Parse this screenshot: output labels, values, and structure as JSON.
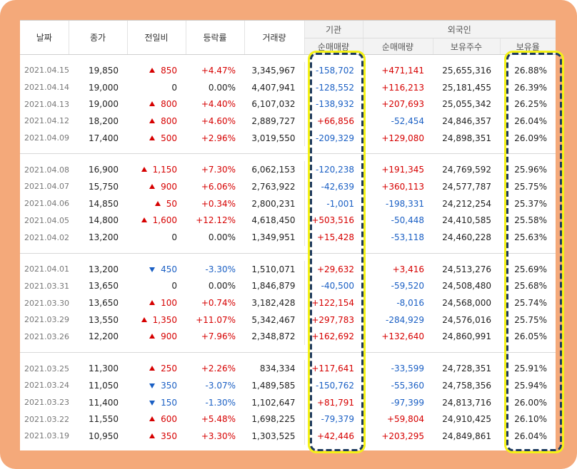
{
  "headers": {
    "date": "날짜",
    "close": "종가",
    "change": "전일비",
    "rate": "등락률",
    "volume": "거래량",
    "institution": "기관",
    "foreign": "외국인",
    "inst_net": "순매매량",
    "frgn_net": "순매매량",
    "frgn_shares": "보유주수",
    "frgn_ratio": "보유율"
  },
  "groups": [
    [
      {
        "date": "2021.04.15",
        "close": "19,850",
        "dir": "up",
        "change": "850",
        "rate": "+4.47%",
        "volume": "3,345,967",
        "inst": "-158,702",
        "frgn": "+471,141",
        "shares": "25,655,316",
        "ratio": "26.88%"
      },
      {
        "date": "2021.04.14",
        "close": "19,000",
        "dir": "none",
        "change": "0",
        "rate": "0.00%",
        "volume": "4,407,941",
        "inst": "-128,552",
        "frgn": "+116,213",
        "shares": "25,181,455",
        "ratio": "26.39%"
      },
      {
        "date": "2021.04.13",
        "close": "19,000",
        "dir": "up",
        "change": "800",
        "rate": "+4.40%",
        "volume": "6,107,032",
        "inst": "-138,932",
        "frgn": "+207,693",
        "shares": "25,055,342",
        "ratio": "26.25%"
      },
      {
        "date": "2021.04.12",
        "close": "18,200",
        "dir": "up",
        "change": "800",
        "rate": "+4.60%",
        "volume": "2,889,727",
        "inst": "+66,856",
        "frgn": "-52,454",
        "shares": "24,846,357",
        "ratio": "26.04%"
      },
      {
        "date": "2021.04.09",
        "close": "17,400",
        "dir": "up",
        "change": "500",
        "rate": "+2.96%",
        "volume": "3,019,550",
        "inst": "-209,329",
        "frgn": "+129,080",
        "shares": "24,898,351",
        "ratio": "26.09%"
      }
    ],
    [
      {
        "date": "2021.04.08",
        "close": "16,900",
        "dir": "up",
        "change": "1,150",
        "rate": "+7.30%",
        "volume": "6,062,153",
        "inst": "-120,238",
        "frgn": "+191,345",
        "shares": "24,769,592",
        "ratio": "25.96%"
      },
      {
        "date": "2021.04.07",
        "close": "15,750",
        "dir": "up",
        "change": "900",
        "rate": "+6.06%",
        "volume": "2,763,922",
        "inst": "-42,639",
        "frgn": "+360,113",
        "shares": "24,577,787",
        "ratio": "25.75%"
      },
      {
        "date": "2021.04.06",
        "close": "14,850",
        "dir": "up",
        "change": "50",
        "rate": "+0.34%",
        "volume": "2,800,231",
        "inst": "-1,001",
        "frgn": "-198,331",
        "shares": "24,212,254",
        "ratio": "25.37%"
      },
      {
        "date": "2021.04.05",
        "close": "14,800",
        "dir": "up",
        "change": "1,600",
        "rate": "+12.12%",
        "volume": "4,618,450",
        "inst": "+503,516",
        "frgn": "-50,448",
        "shares": "24,410,585",
        "ratio": "25.58%"
      },
      {
        "date": "2021.04.02",
        "close": "13,200",
        "dir": "none",
        "change": "0",
        "rate": "0.00%",
        "volume": "1,349,951",
        "inst": "+15,428",
        "frgn": "-53,118",
        "shares": "24,460,228",
        "ratio": "25.63%"
      }
    ],
    [
      {
        "date": "2021.04.01",
        "close": "13,200",
        "dir": "down",
        "change": "450",
        "rate": "-3.30%",
        "volume": "1,510,071",
        "inst": "+29,632",
        "frgn": "+3,416",
        "shares": "24,513,276",
        "ratio": "25.69%"
      },
      {
        "date": "2021.03.31",
        "close": "13,650",
        "dir": "none",
        "change": "0",
        "rate": "0.00%",
        "volume": "1,846,879",
        "inst": "-40,500",
        "frgn": "-59,520",
        "shares": "24,508,480",
        "ratio": "25.68%"
      },
      {
        "date": "2021.03.30",
        "close": "13,650",
        "dir": "up",
        "change": "100",
        "rate": "+0.74%",
        "volume": "3,182,428",
        "inst": "+122,154",
        "frgn": "-8,016",
        "shares": "24,568,000",
        "ratio": "25.74%"
      },
      {
        "date": "2021.03.29",
        "close": "13,550",
        "dir": "up",
        "change": "1,350",
        "rate": "+11.07%",
        "volume": "5,342,467",
        "inst": "+297,783",
        "frgn": "-284,929",
        "shares": "24,576,016",
        "ratio": "25.75%"
      },
      {
        "date": "2021.03.26",
        "close": "12,200",
        "dir": "up",
        "change": "900",
        "rate": "+7.96%",
        "volume": "2,348,872",
        "inst": "+162,692",
        "frgn": "+132,640",
        "shares": "24,860,991",
        "ratio": "26.05%"
      }
    ],
    [
      {
        "date": "2021.03.25",
        "close": "11,300",
        "dir": "up",
        "change": "250",
        "rate": "+2.26%",
        "volume": "834,334",
        "inst": "+117,641",
        "frgn": "-33,599",
        "shares": "24,728,351",
        "ratio": "25.91%"
      },
      {
        "date": "2021.03.24",
        "close": "11,050",
        "dir": "down",
        "change": "350",
        "rate": "-3.07%",
        "volume": "1,489,585",
        "inst": "-150,762",
        "frgn": "-55,360",
        "shares": "24,758,356",
        "ratio": "25.94%"
      },
      {
        "date": "2021.03.23",
        "close": "11,400",
        "dir": "down",
        "change": "150",
        "rate": "-1.30%",
        "volume": "1,102,647",
        "inst": "+81,791",
        "frgn": "-97,399",
        "shares": "24,813,716",
        "ratio": "26.00%"
      },
      {
        "date": "2021.03.22",
        "close": "11,550",
        "dir": "up",
        "change": "600",
        "rate": "+5.48%",
        "volume": "1,698,225",
        "inst": "-79,379",
        "frgn": "+59,804",
        "shares": "24,910,425",
        "ratio": "26.10%"
      },
      {
        "date": "2021.03.19",
        "close": "10,950",
        "dir": "up",
        "change": "350",
        "rate": "+3.30%",
        "volume": "1,303,525",
        "inst": "+42,446",
        "frgn": "+203,295",
        "shares": "24,849,861",
        "ratio": "26.04%"
      }
    ]
  ],
  "colors": {
    "up": "#d60000",
    "down": "#1a5fc4",
    "highlight_border": "#1e3a5f",
    "highlight_glow": "#f5f216",
    "frame": "#f4a97a"
  }
}
